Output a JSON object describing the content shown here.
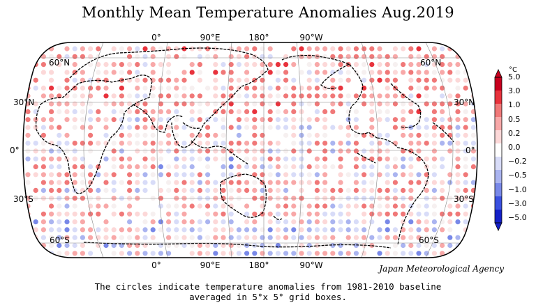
{
  "title": "Monthly Mean Temperature Anomalies Aug.2019",
  "credit": "Japan Meteorological Agency",
  "caption": {
    "line1": "The circles indicate temperature anomalies from 1981-2010 baseline",
    "line2": "averaged in 5°x 5° grid boxes."
  },
  "longitude_labels": [
    "0°",
    "90°E",
    "180°",
    "90°W"
  ],
  "latitude_labels": {
    "n60": "60°N",
    "n30": "30°N",
    "eq": "0°",
    "s30": "30°S",
    "s60": "60°S"
  },
  "legend": {
    "unit": "°C",
    "labels": [
      "5.0",
      "3.0",
      "1.0",
      "0.5",
      "0.2",
      "0.0",
      "−0.2",
      "−0.5",
      "−1.0",
      "−3.0",
      "−5.0"
    ],
    "colors": [
      "#c8001e",
      "#e8323c",
      "#f07878",
      "#f8a8a8",
      "#fcd8d8",
      "#ffffff",
      "#d8dcf8",
      "#aab4f0",
      "#7888e8",
      "#3a50e0",
      "#1420c8"
    ]
  }
}
